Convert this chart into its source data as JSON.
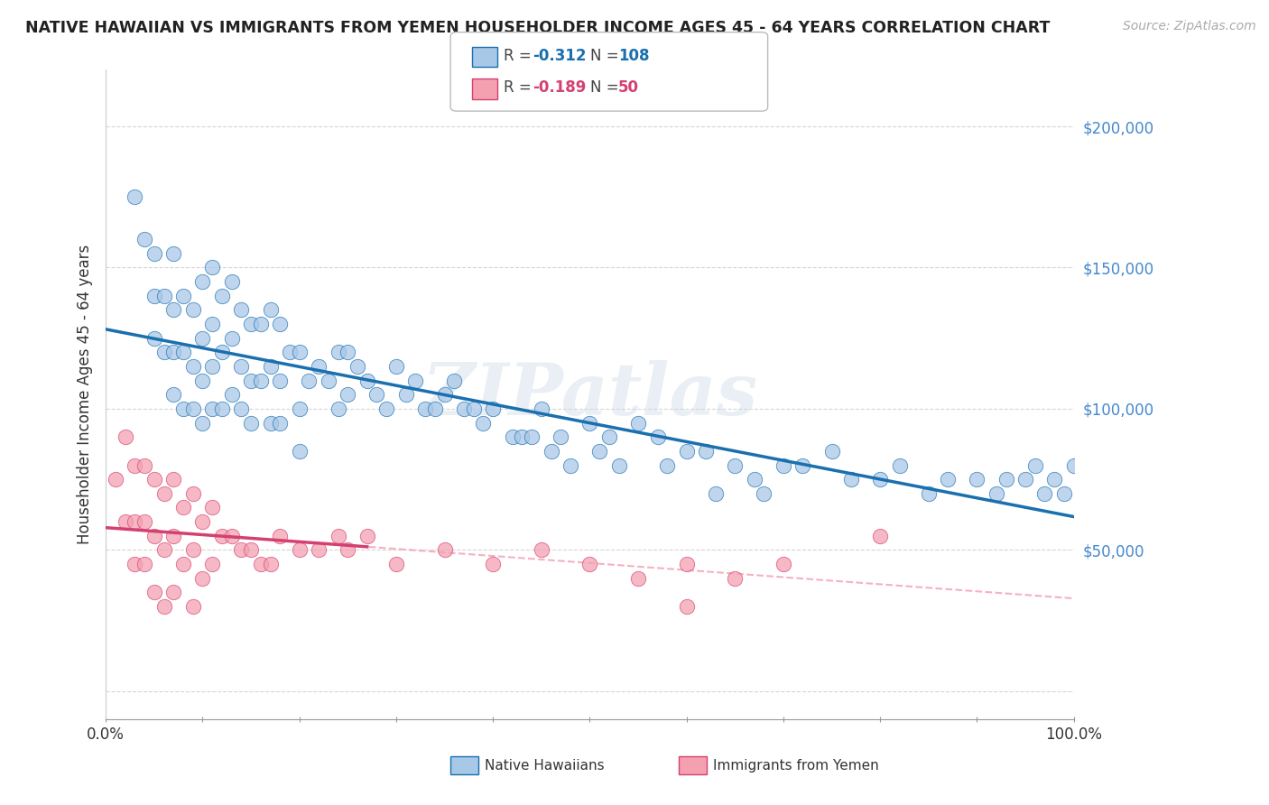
{
  "title": "NATIVE HAWAIIAN VS IMMIGRANTS FROM YEMEN HOUSEHOLDER INCOME AGES 45 - 64 YEARS CORRELATION CHART",
  "source": "Source: ZipAtlas.com",
  "ylabel": "Householder Income Ages 45 - 64 years",
  "xlim": [
    0,
    100
  ],
  "ylim": [
    -10000,
    220000
  ],
  "yticks": [
    0,
    50000,
    100000,
    150000,
    200000
  ],
  "ytick_labels": [
    "",
    "$50,000",
    "$100,000",
    "$150,000",
    "$200,000"
  ],
  "xticks": [
    0,
    10,
    20,
    30,
    40,
    50,
    60,
    70,
    80,
    90,
    100
  ],
  "xtick_labels": [
    "0.0%",
    "",
    "",
    "",
    "",
    "",
    "",
    "",
    "",
    "",
    "100.0%"
  ],
  "blue_color": "#a8c8e8",
  "pink_color": "#f4a0b0",
  "blue_line_color": "#1a6faf",
  "pink_line_color": "#d44070",
  "pink_dash_color": "#f090a8",
  "background_color": "#ffffff",
  "watermark": "ZIPatlas",
  "grid_color": "#cccccc",
  "right_tick_color": "#4488cc",
  "nh_x": [
    3,
    4,
    5,
    5,
    5,
    6,
    6,
    7,
    7,
    7,
    7,
    8,
    8,
    8,
    9,
    9,
    9,
    10,
    10,
    10,
    10,
    11,
    11,
    11,
    11,
    12,
    12,
    12,
    13,
    13,
    13,
    14,
    14,
    14,
    15,
    15,
    15,
    16,
    16,
    17,
    17,
    17,
    18,
    18,
    18,
    19,
    20,
    20,
    20,
    21,
    22,
    23,
    24,
    24,
    25,
    25,
    26,
    27,
    28,
    29,
    30,
    31,
    32,
    33,
    34,
    35,
    36,
    37,
    38,
    39,
    40,
    42,
    43,
    44,
    45,
    46,
    47,
    48,
    50,
    51,
    52,
    53,
    55,
    57,
    58,
    60,
    62,
    63,
    65,
    67,
    68,
    70,
    72,
    75,
    77,
    80,
    82,
    85,
    87,
    90,
    92,
    93,
    95,
    96,
    97,
    98,
    99,
    100
  ],
  "nh_y": [
    175000,
    160000,
    155000,
    140000,
    125000,
    140000,
    120000,
    155000,
    135000,
    120000,
    105000,
    140000,
    120000,
    100000,
    135000,
    115000,
    100000,
    145000,
    125000,
    110000,
    95000,
    150000,
    130000,
    115000,
    100000,
    140000,
    120000,
    100000,
    145000,
    125000,
    105000,
    135000,
    115000,
    100000,
    130000,
    110000,
    95000,
    130000,
    110000,
    135000,
    115000,
    95000,
    130000,
    110000,
    95000,
    120000,
    120000,
    100000,
    85000,
    110000,
    115000,
    110000,
    120000,
    100000,
    120000,
    105000,
    115000,
    110000,
    105000,
    100000,
    115000,
    105000,
    110000,
    100000,
    100000,
    105000,
    110000,
    100000,
    100000,
    95000,
    100000,
    90000,
    90000,
    90000,
    100000,
    85000,
    90000,
    80000,
    95000,
    85000,
    90000,
    80000,
    95000,
    90000,
    80000,
    85000,
    85000,
    70000,
    80000,
    75000,
    70000,
    80000,
    80000,
    85000,
    75000,
    75000,
    80000,
    70000,
    75000,
    75000,
    70000,
    75000,
    75000,
    80000,
    70000,
    75000,
    70000,
    80000
  ],
  "yemen_x": [
    1,
    2,
    2,
    3,
    3,
    3,
    4,
    4,
    4,
    5,
    5,
    5,
    6,
    6,
    6,
    7,
    7,
    7,
    8,
    8,
    9,
    9,
    9,
    10,
    10,
    11,
    11,
    12,
    13,
    14,
    15,
    16,
    17,
    18,
    20,
    22,
    24,
    25,
    27,
    30,
    35,
    40,
    45,
    50,
    55,
    60,
    65,
    70,
    80,
    60
  ],
  "yemen_y": [
    75000,
    90000,
    60000,
    80000,
    60000,
    45000,
    80000,
    60000,
    45000,
    75000,
    55000,
    35000,
    70000,
    50000,
    30000,
    75000,
    55000,
    35000,
    65000,
    45000,
    70000,
    50000,
    30000,
    60000,
    40000,
    65000,
    45000,
    55000,
    55000,
    50000,
    50000,
    45000,
    45000,
    55000,
    50000,
    50000,
    55000,
    50000,
    55000,
    45000,
    50000,
    45000,
    50000,
    45000,
    40000,
    45000,
    40000,
    45000,
    55000,
    30000
  ]
}
